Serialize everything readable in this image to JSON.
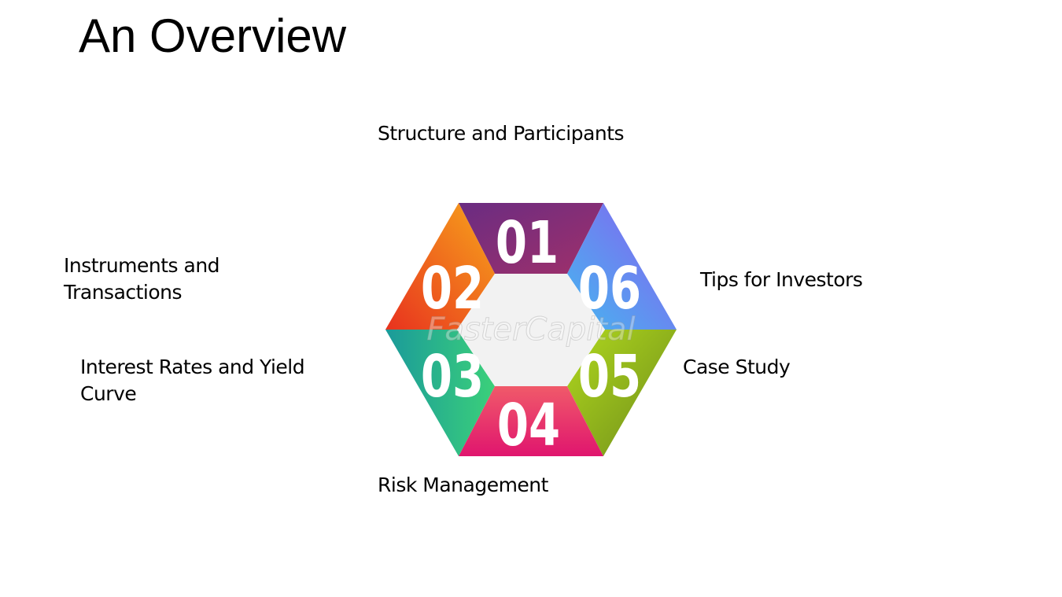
{
  "title": "An Overview",
  "watermark": "FasterCapital",
  "segments": [
    {
      "number": "01",
      "label": "Structure and Participants",
      "colors": [
        "#6a2c82",
        "#a0306a"
      ]
    },
    {
      "number": "02",
      "label": "Instruments and Transactions",
      "colors": [
        "#e8321e",
        "#f7a51c"
      ]
    },
    {
      "number": "03",
      "label": "Interest Rates and Yield Curve",
      "colors": [
        "#1a9a9a",
        "#3bd07a"
      ]
    },
    {
      "number": "04",
      "label": "Risk Management",
      "colors": [
        "#f05a6a",
        "#e0156e"
      ]
    },
    {
      "number": "05",
      "label": "Case Study",
      "colors": [
        "#b0d81e",
        "#6e8c1a"
      ]
    },
    {
      "number": "06",
      "label": "Tips for Investors",
      "colors": [
        "#44b8f0",
        "#8a5cf0"
      ]
    }
  ],
  "center_color": "#f2f2f2"
}
